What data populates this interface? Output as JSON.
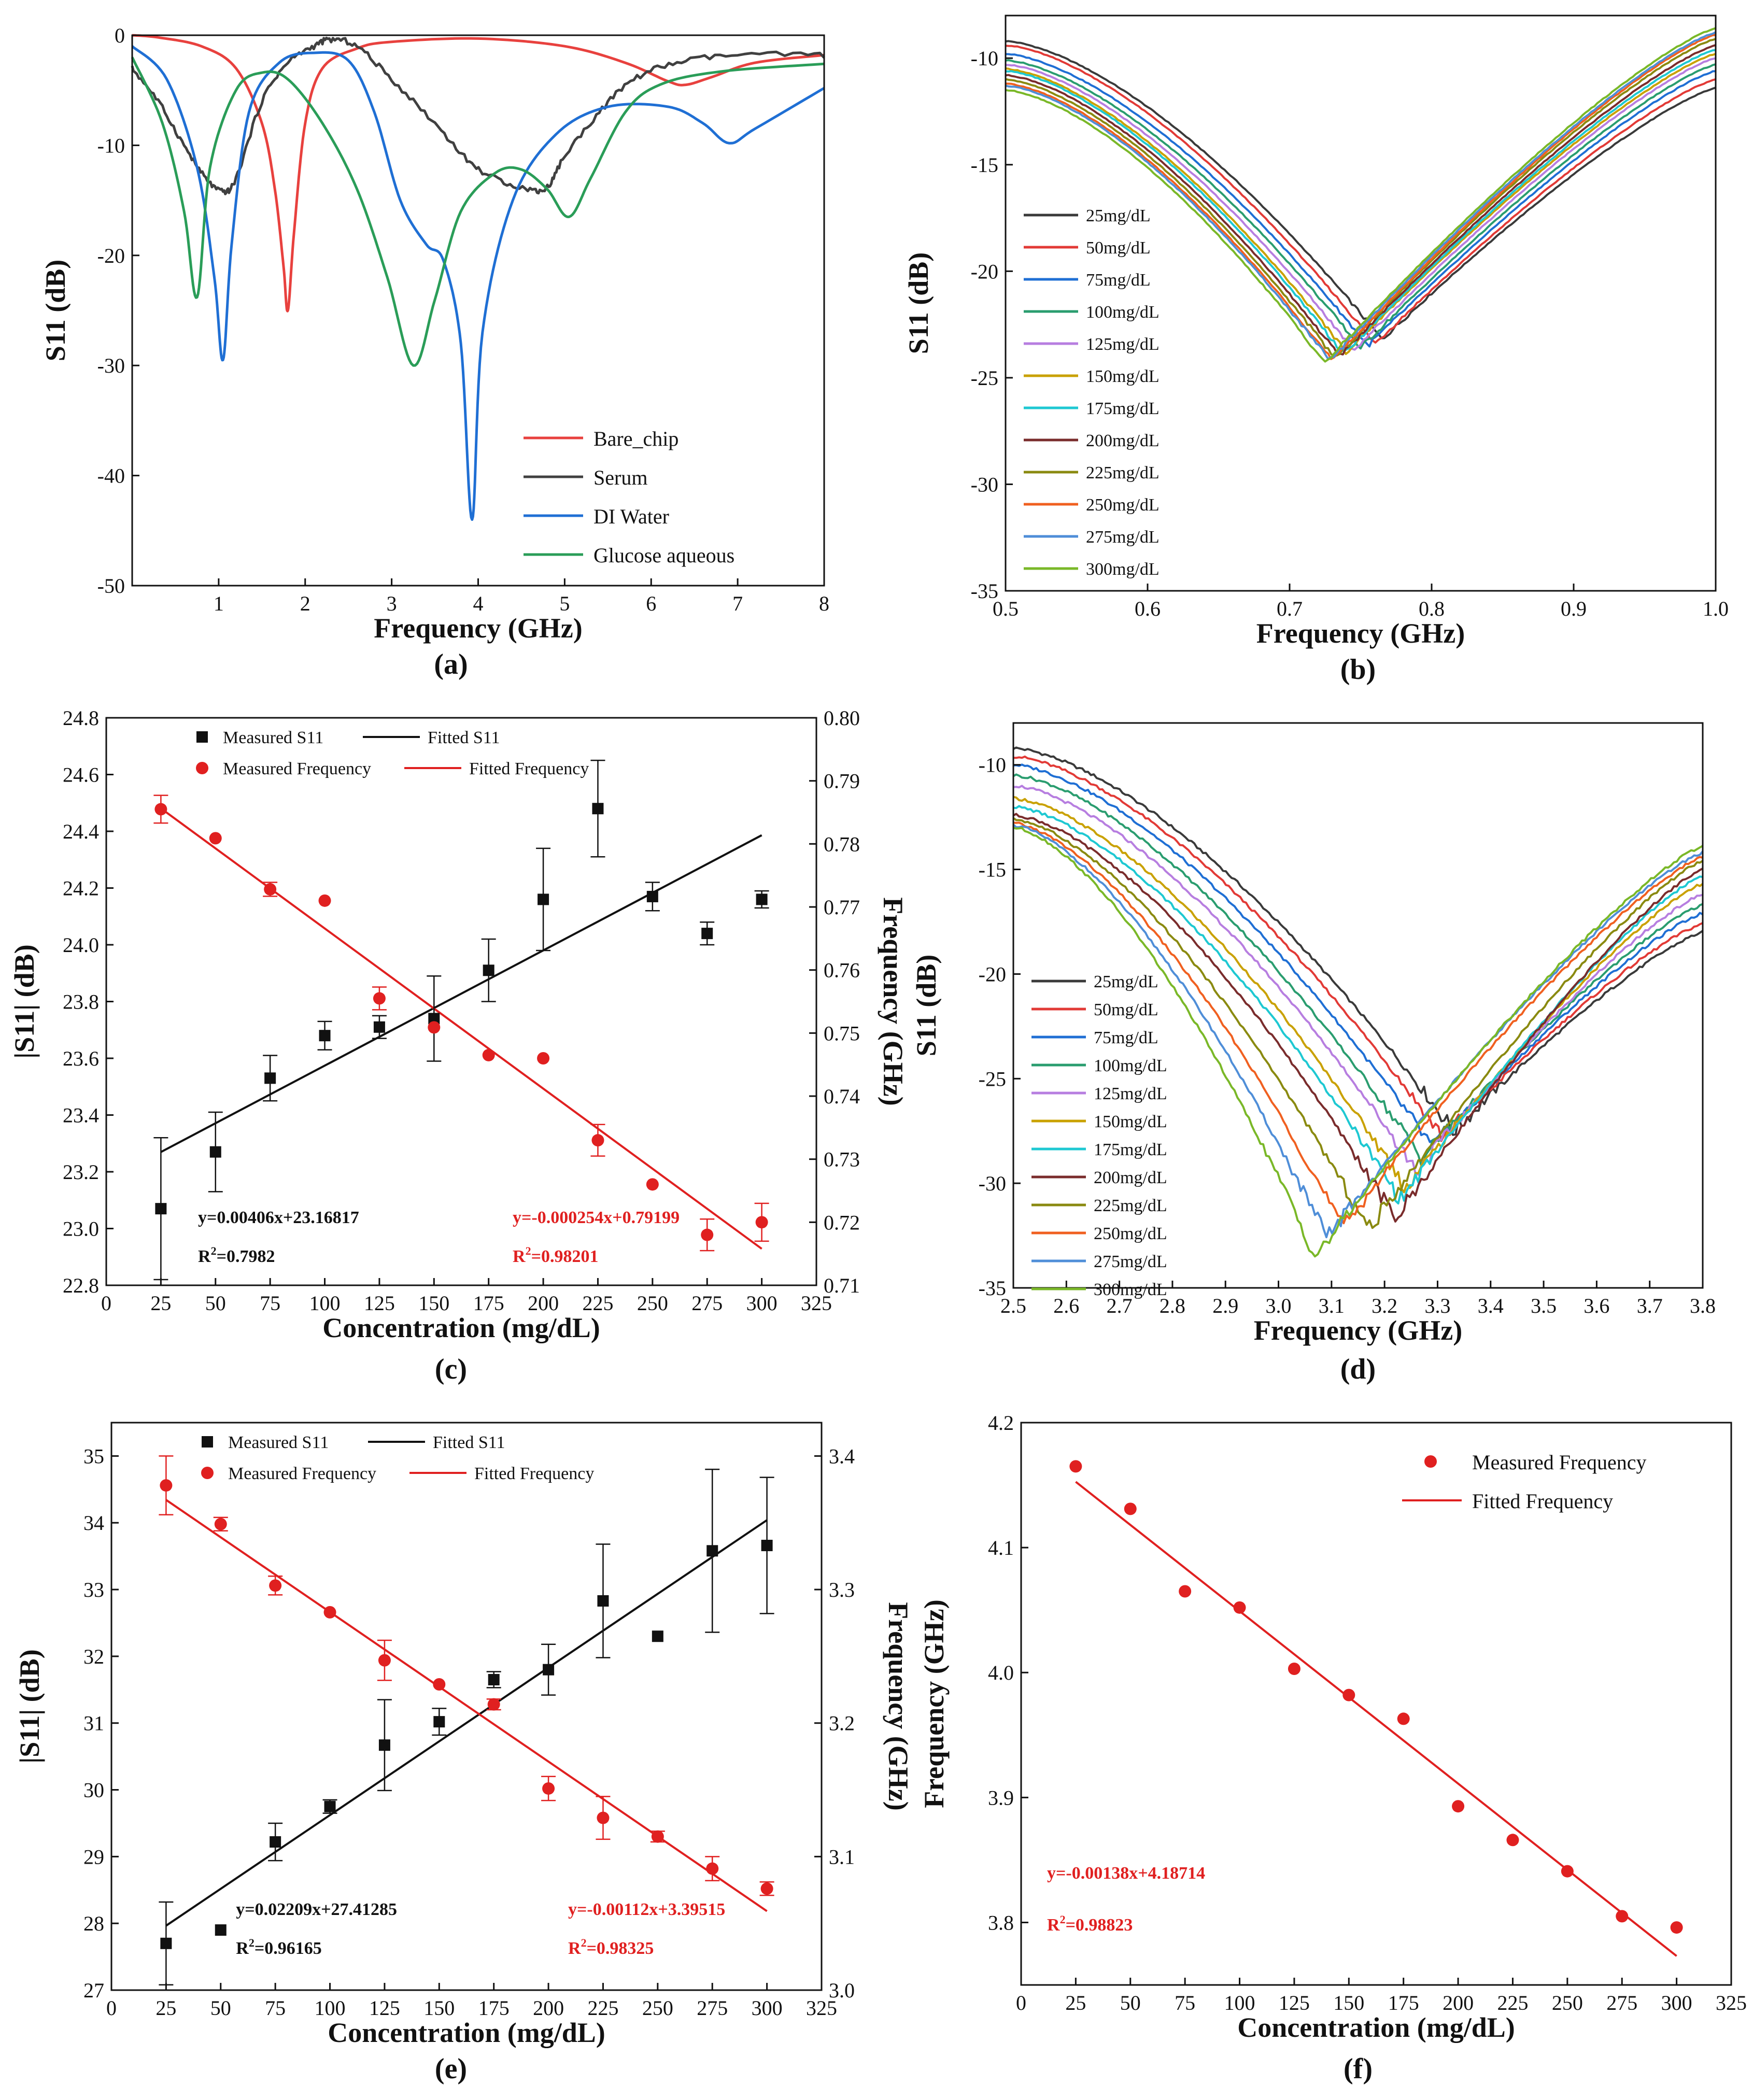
{
  "figure": {
    "panels": [
      "(a)",
      "(b)",
      "(c)",
      "(d)",
      "(e)",
      "(f)"
    ]
  },
  "chart_data": [
    {
      "id": "a",
      "type": "line",
      "label": "(a)",
      "xlabel": "Frequency (GHz)",
      "ylabel": "S11 (dB)",
      "xlim": [
        0,
        8
      ],
      "ylim": [
        -50,
        0
      ],
      "xticks": [
        1,
        2,
        3,
        4,
        5,
        6,
        7,
        8
      ],
      "yticks": [
        0,
        -10,
        -20,
        -30,
        -40,
        -50
      ],
      "legend_position": "bottom-right",
      "series": [
        {
          "name": "Bare_chip",
          "color": "#e8413e",
          "points": [
            [
              0,
              0
            ],
            [
              0.3,
              -0.2
            ],
            [
              0.8,
              -1
            ],
            [
              1.2,
              -3
            ],
            [
              1.5,
              -8
            ],
            [
              1.65,
              -14
            ],
            [
              1.75,
              -21
            ],
            [
              1.8,
              -25
            ],
            [
              1.87,
              -18
            ],
            [
              2.0,
              -8
            ],
            [
              2.2,
              -3
            ],
            [
              2.6,
              -1.2
            ],
            [
              3.0,
              -0.6
            ],
            [
              4.0,
              -0.3
            ],
            [
              5.0,
              -1
            ],
            [
              5.7,
              -2.5
            ],
            [
              6.2,
              -4.2
            ],
            [
              6.4,
              -4.5
            ],
            [
              6.7,
              -3.8
            ],
            [
              7.2,
              -2.5
            ],
            [
              8,
              -1.8
            ]
          ]
        },
        {
          "name": "Serum",
          "color": "#404040",
          "points": [
            [
              0,
              -3
            ],
            [
              0.3,
              -6
            ],
            [
              0.6,
              -10
            ],
            [
              0.85,
              -13
            ],
            [
              1.05,
              -14.2
            ],
            [
              1.2,
              -13
            ],
            [
              1.5,
              -6
            ],
            [
              1.8,
              -2.5
            ],
            [
              2.1,
              -1
            ],
            [
              2.3,
              -0.4
            ],
            [
              2.6,
              -1
            ],
            [
              3.0,
              -4
            ],
            [
              3.5,
              -8
            ],
            [
              3.9,
              -11.5
            ],
            [
              4.2,
              -13
            ],
            [
              4.6,
              -14
            ],
            [
              4.8,
              -13.8
            ],
            [
              5.0,
              -11
            ],
            [
              5.4,
              -7
            ],
            [
              5.8,
              -4
            ],
            [
              6.3,
              -2.5
            ],
            [
              7.0,
              -1.8
            ],
            [
              8,
              -1.8
            ]
          ]
        },
        {
          "name": "DI Water",
          "color": "#1f6fd4",
          "points": [
            [
              0,
              -1
            ],
            [
              0.4,
              -4
            ],
            [
              0.75,
              -12
            ],
            [
              0.95,
              -22
            ],
            [
              1.05,
              -29.5
            ],
            [
              1.15,
              -19
            ],
            [
              1.35,
              -7
            ],
            [
              1.7,
              -2.5
            ],
            [
              2.1,
              -1.6
            ],
            [
              2.5,
              -2.3
            ],
            [
              2.8,
              -7
            ],
            [
              3.1,
              -15
            ],
            [
              3.4,
              -19
            ],
            [
              3.6,
              -20.5
            ],
            [
              3.8,
              -28
            ],
            [
              3.93,
              -44
            ],
            [
              4.05,
              -27
            ],
            [
              4.4,
              -15
            ],
            [
              4.9,
              -9
            ],
            [
              5.5,
              -6.5
            ],
            [
              6.2,
              -6.5
            ],
            [
              6.6,
              -8
            ],
            [
              6.9,
              -9.8
            ],
            [
              7.2,
              -8.5
            ],
            [
              8,
              -4.8
            ]
          ]
        },
        {
          "name": "Glucose aqueous",
          "color": "#2a9d58",
          "points": [
            [
              0,
              -2
            ],
            [
              0.35,
              -8
            ],
            [
              0.6,
              -16
            ],
            [
              0.75,
              -23.8
            ],
            [
              0.9,
              -12
            ],
            [
              1.2,
              -5
            ],
            [
              1.5,
              -3.4
            ],
            [
              1.8,
              -4
            ],
            [
              2.2,
              -8
            ],
            [
              2.6,
              -14
            ],
            [
              2.95,
              -22
            ],
            [
              3.25,
              -30
            ],
            [
              3.5,
              -24
            ],
            [
              3.8,
              -16
            ],
            [
              4.2,
              -12.5
            ],
            [
              4.5,
              -12.2
            ],
            [
              4.8,
              -14
            ],
            [
              5.05,
              -16.5
            ],
            [
              5.3,
              -13
            ],
            [
              5.7,
              -7
            ],
            [
              6.1,
              -4.5
            ],
            [
              6.8,
              -3.3
            ],
            [
              8,
              -2.6
            ]
          ]
        }
      ]
    },
    {
      "id": "b",
      "type": "line",
      "label": "(b)",
      "xlabel": "Frequency (GHz)",
      "ylabel": "S11 (dB)",
      "xlim": [
        0.5,
        1.0
      ],
      "ylim": [
        -35,
        -8
      ],
      "xticks": [
        0.5,
        0.6,
        0.7,
        0.8,
        0.9,
        1.0
      ],
      "yticks": [
        -10,
        -15,
        -20,
        -25,
        -30,
        -35
      ],
      "legend_position": "bottom-left",
      "series": [
        {
          "name": "25mg/dL",
          "color": "#3a3a3a",
          "start": -9.2,
          "min_x": 0.765,
          "min": -23.2,
          "end": -11.4
        },
        {
          "name": "50mg/dL",
          "color": "#e23a36",
          "start": -9.4,
          "min_x": 0.76,
          "min": -23.4,
          "end": -11.0
        },
        {
          "name": "75mg/dL",
          "color": "#1f6fd4",
          "start": -9.8,
          "min_x": 0.755,
          "min": -23.5,
          "end": -10.6
        },
        {
          "name": "100mg/dL",
          "color": "#2a9d6f",
          "start": -10.1,
          "min_x": 0.75,
          "min": -23.6,
          "end": -10.3
        },
        {
          "name": "125mg/dL",
          "color": "#b77ee0",
          "start": -10.3,
          "min_x": 0.745,
          "min": -23.7,
          "end": -10.0
        },
        {
          "name": "150mg/dL",
          "color": "#c9a100",
          "start": -10.5,
          "min_x": 0.74,
          "min": -23.8,
          "end": -9.8
        },
        {
          "name": "175mg/dL",
          "color": "#1ec8d2",
          "start": -10.6,
          "min_x": 0.738,
          "min": -23.9,
          "end": -9.6
        },
        {
          "name": "200mg/dL",
          "color": "#7a2c2c",
          "start": -10.8,
          "min_x": 0.735,
          "min": -24.0,
          "end": -9.4
        },
        {
          "name": "225mg/dL",
          "color": "#8a8a10",
          "start": -11.0,
          "min_x": 0.732,
          "min": -24.1,
          "end": -9.1
        },
        {
          "name": "250mg/dL",
          "color": "#f06020",
          "start": -11.2,
          "min_x": 0.73,
          "min": -24.2,
          "end": -8.9
        },
        {
          "name": "275mg/dL",
          "color": "#4f8ed8",
          "start": -11.3,
          "min_x": 0.728,
          "min": -24.2,
          "end": -8.8
        },
        {
          "name": "300mg/dL",
          "color": "#7ab828",
          "start": -11.5,
          "min_x": 0.725,
          "min": -24.3,
          "end": -8.6
        }
      ]
    },
    {
      "id": "c",
      "type": "scatter",
      "label": "(c)",
      "xlabel": "Concentration (mg/dL)",
      "ylabel": "|S11| (dB)",
      "y2label": "Frequency (GHz)",
      "xlim": [
        0,
        325
      ],
      "ylim": [
        22.8,
        24.8
      ],
      "y2lim": [
        0.71,
        0.8
      ],
      "xticks": [
        0,
        25,
        50,
        75,
        100,
        125,
        150,
        175,
        200,
        225,
        250,
        275,
        300,
        325
      ],
      "yticks": [
        22.8,
        23.0,
        23.2,
        23.4,
        23.6,
        23.8,
        24.0,
        24.2,
        24.4,
        24.6,
        24.8
      ],
      "y2ticks": [
        0.71,
        0.72,
        0.73,
        0.74,
        0.75,
        0.76,
        0.77,
        0.78,
        0.79,
        0.8
      ],
      "legend": [
        "Measured S11",
        "Fitted S11",
        "Measured Frequency",
        "Fitted Frequency"
      ],
      "x": [
        25,
        50,
        75,
        100,
        125,
        150,
        175,
        200,
        225,
        250,
        275,
        300
      ],
      "s11": [
        23.07,
        23.27,
        23.53,
        23.68,
        23.71,
        23.74,
        23.91,
        24.16,
        24.48,
        24.17,
        24.04,
        24.16
      ],
      "s11_err": [
        0.25,
        0.14,
        0.08,
        0.05,
        0.04,
        0.15,
        0.11,
        0.18,
        0.17,
        0.05,
        0.04,
        0.03
      ],
      "freq": [
        0.7855,
        0.7809,
        0.7728,
        0.771,
        0.7555,
        0.7509,
        0.7465,
        0.746,
        0.733,
        0.726,
        0.718,
        0.72
      ],
      "freq_err": [
        0.0022,
        0,
        0.0011,
        0,
        0.0018,
        0,
        0,
        0,
        0.0025,
        0,
        0.0025,
        0.003
      ],
      "fit_s11": {
        "slope": 0.00406,
        "intercept": 23.16817
      },
      "fit_freq": {
        "slope": -0.000254,
        "intercept": 0.79199
      },
      "eq_s11": "y=0.00406x+23.16817",
      "r2_s11": "=0.7982",
      "eq_freq": "y=-0.000254x+0.79199",
      "r2_freq": "=0.98201"
    },
    {
      "id": "d",
      "type": "line",
      "label": "(d)",
      "xlabel": "Frequency (GHz)",
      "ylabel": "S11 (dB)",
      "xlim": [
        2.5,
        3.8
      ],
      "ylim": [
        -35,
        -8
      ],
      "xticks": [
        2.5,
        2.6,
        2.7,
        2.8,
        2.9,
        3.0,
        3.1,
        3.2,
        3.3,
        3.4,
        3.5,
        3.6,
        3.7,
        3.8
      ],
      "yticks": [
        -10,
        -15,
        -20,
        -25,
        -30,
        -35
      ],
      "legend_position": "bottom-left",
      "series": [
        {
          "name": "25mg/dL",
          "color": "#3a3a3a",
          "start": -9.2,
          "min_x": 3.33,
          "min": -27.5,
          "end": -18.0
        },
        {
          "name": "50mg/dL",
          "color": "#e23a36",
          "start": -9.6,
          "min_x": 3.31,
          "min": -27.8,
          "end": -17.6
        },
        {
          "name": "75mg/dL",
          "color": "#1f6fd4",
          "start": -10.0,
          "min_x": 3.29,
          "min": -28.3,
          "end": -17.1
        },
        {
          "name": "100mg/dL",
          "color": "#2a9d6f",
          "start": -10.5,
          "min_x": 3.27,
          "min": -28.8,
          "end": -16.7
        },
        {
          "name": "125mg/dL",
          "color": "#b77ee0",
          "start": -11.0,
          "min_x": 3.26,
          "min": -29.4,
          "end": -16.2
        },
        {
          "name": "150mg/dL",
          "color": "#c9a100",
          "start": -11.6,
          "min_x": 3.24,
          "min": -30.2,
          "end": -15.7
        },
        {
          "name": "175mg/dL",
          "color": "#1ec8d2",
          "start": -12.0,
          "min_x": 3.23,
          "min": -30.8,
          "end": -15.3
        },
        {
          "name": "200mg/dL",
          "color": "#7a2c2c",
          "start": -12.4,
          "min_x": 3.22,
          "min": -31.7,
          "end": -15.0
        },
        {
          "name": "225mg/dL",
          "color": "#8a8a10",
          "start": -12.6,
          "min_x": 3.17,
          "min": -32.2,
          "end": -14.6
        },
        {
          "name": "250mg/dL",
          "color": "#f06020",
          "start": -12.8,
          "min_x": 3.12,
          "min": -32.1,
          "end": -14.4
        },
        {
          "name": "275mg/dL",
          "color": "#4f8ed8",
          "start": -12.9,
          "min_x": 3.09,
          "min": -32.6,
          "end": -14.2
        },
        {
          "name": "300mg/dL",
          "color": "#7ab828",
          "start": -13.0,
          "min_x": 3.07,
          "min": -33.5,
          "end": -13.9
        }
      ]
    },
    {
      "id": "e",
      "type": "scatter",
      "label": "(e)",
      "xlabel": "Concentration (mg/dL)",
      "ylabel": "|S11| (dB)",
      "y2label": "Frequency (GHz)",
      "xlim": [
        0,
        325
      ],
      "ylim": [
        27,
        35.5
      ],
      "y2lim": [
        3.0,
        3.425
      ],
      "xticks": [
        0,
        25,
        50,
        75,
        100,
        125,
        150,
        175,
        200,
        225,
        250,
        275,
        300,
        325
      ],
      "yticks": [
        27,
        28,
        29,
        30,
        31,
        32,
        33,
        34,
        35
      ],
      "y2ticks": [
        3.0,
        3.1,
        3.2,
        3.3,
        3.4
      ],
      "legend": [
        "Measured S11",
        "Fitted S11",
        "Measured Frequency",
        "Fitted Frequency"
      ],
      "x": [
        25,
        50,
        75,
        100,
        125,
        150,
        175,
        200,
        225,
        250,
        275,
        300
      ],
      "s11": [
        27.7,
        27.9,
        29.22,
        29.75,
        30.67,
        31.02,
        31.65,
        31.8,
        32.83,
        32.3,
        33.58,
        33.66
      ],
      "s11_err": [
        0.62,
        0,
        0.28,
        0.1,
        0.68,
        0.2,
        0.12,
        0.38,
        0.85,
        0,
        1.22,
        1.02
      ],
      "freq": [
        3.378,
        3.349,
        3.303,
        3.283,
        3.247,
        3.229,
        3.214,
        3.151,
        3.129,
        3.115,
        3.091,
        3.076
      ],
      "freq_err": [
        0.022,
        0.005,
        0.007,
        0,
        0.015,
        0,
        0.004,
        0.009,
        0.016,
        0.004,
        0.009,
        0.005
      ],
      "fit_s11": {
        "slope": 0.02209,
        "intercept": 27.41285
      },
      "fit_freq": {
        "slope": -0.00112,
        "intercept": 3.39515
      },
      "eq_s11": "y=0.02209x+27.41285",
      "r2_s11": "=0.96165",
      "eq_freq": "y=-0.00112x+3.39515",
      "r2_freq": "=0.98325"
    },
    {
      "id": "f",
      "type": "scatter",
      "label": "(f)",
      "xlabel": "Concentration  (mg/dL)",
      "ylabel": "Frequency (GHz)",
      "xlim": [
        0,
        325
      ],
      "ylim": [
        3.75,
        4.2
      ],
      "xticks": [
        0,
        25,
        50,
        75,
        100,
        125,
        150,
        175,
        200,
        225,
        250,
        275,
        300,
        325
      ],
      "yticks": [
        3.8,
        3.9,
        4.0,
        4.1,
        4.2
      ],
      "legend": [
        "Measured Frequency",
        "Fitted Frequency"
      ],
      "x": [
        25,
        50,
        75,
        100,
        125,
        150,
        175,
        200,
        225,
        250,
        275,
        300
      ],
      "freq": [
        4.165,
        4.131,
        4.065,
        4.052,
        4.003,
        3.982,
        3.963,
        3.893,
        3.866,
        3.841,
        3.805,
        3.796
      ],
      "fit_freq": {
        "slope": -0.00138,
        "intercept": 4.18714
      },
      "eq_freq": "y=-0.00138x+4.18714",
      "r2_freq": "=0.98823"
    }
  ]
}
